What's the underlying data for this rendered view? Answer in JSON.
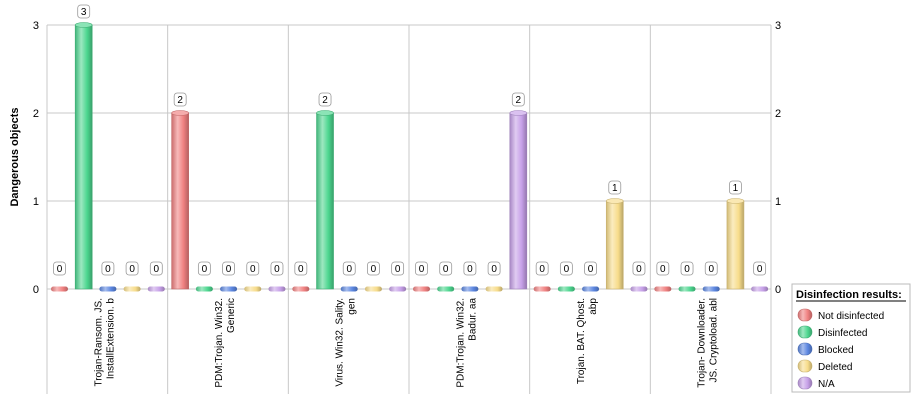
{
  "chart_data": {
    "type": "bar",
    "categories": [
      [
        "Trojan-Ransom. JS.",
        "InstallExtension. b"
      ],
      [
        "PDM:Trojan. Win32.",
        "Generic"
      ],
      [
        "Virus. Win32. Sality.",
        "gen"
      ],
      [
        "PDM:Trojan. Win32.",
        "Badur. aa"
      ],
      [
        "Trojan. BAT. Qhost.",
        "abp"
      ],
      [
        "Trojan- Downloader.",
        "JS. Cryptoload. abl"
      ]
    ],
    "series": [
      {
        "name": "Not disinfected",
        "color": "#f08080",
        "values": [
          0,
          2,
          0,
          0,
          0,
          0
        ]
      },
      {
        "name": "Disinfected",
        "color": "#4cd68f",
        "values": [
          3,
          0,
          2,
          0,
          0,
          0
        ]
      },
      {
        "name": "Blocked",
        "color": "#5b86e0",
        "values": [
          0,
          0,
          0,
          0,
          0,
          0
        ]
      },
      {
        "name": "Deleted",
        "color": "#f7dc8a",
        "values": [
          0,
          0,
          0,
          0,
          1,
          1
        ]
      },
      {
        "name": "N/A",
        "color": "#c6a0e8",
        "values": [
          0,
          0,
          0,
          2,
          0,
          0
        ]
      }
    ],
    "ylabel": "Dangerous objects",
    "ylim": [
      0,
      3
    ],
    "yticks": [
      0,
      1,
      2,
      3
    ],
    "grid": true,
    "legend": {
      "title": "Disinfection results:",
      "position": "bottom-right"
    },
    "data_labels": true
  }
}
